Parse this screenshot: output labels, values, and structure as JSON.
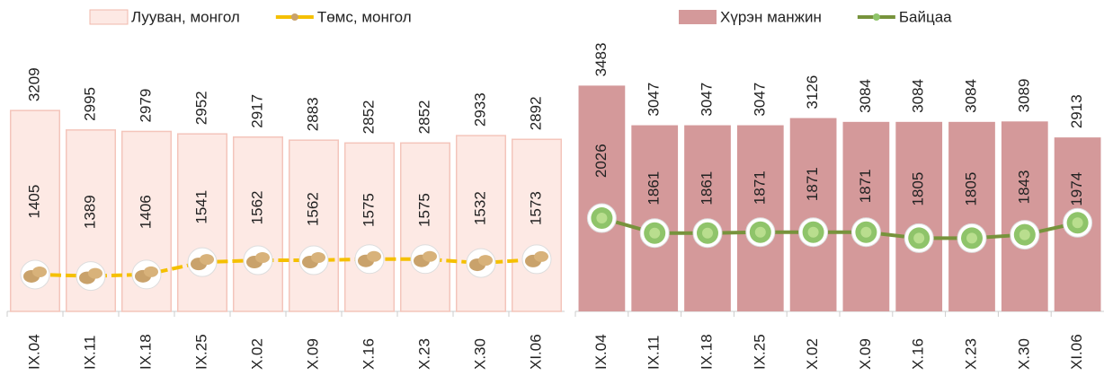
{
  "chart_data": [
    {
      "type": "bar",
      "legend": "top",
      "categories": [
        "IX.04",
        "IX.11",
        "IX.18",
        "IX.25",
        "X.02",
        "X.09",
        "X.16",
        "X.23",
        "X.30",
        "XI.06"
      ],
      "ylim": [
        1000,
        4000
      ],
      "series": [
        {
          "name": "Лууван, монгол",
          "type": "bar",
          "color": "#fde9e4",
          "values": [
            3209,
            2995,
            2979,
            2952,
            2917,
            2883,
            2852,
            2852,
            2933,
            2892
          ]
        },
        {
          "name": "Төмс, монгол",
          "type": "line",
          "color": "#f5c000",
          "values": [
            1405,
            1389,
            1406,
            1541,
            1562,
            1562,
            1575,
            1575,
            1532,
            1573
          ]
        }
      ]
    },
    {
      "type": "bar",
      "legend": "top",
      "categories": [
        "IX.04",
        "IX.11",
        "IX.18",
        "IX.25",
        "X.02",
        "X.09",
        "X.16",
        "X.23",
        "X.30",
        "XI.06"
      ],
      "ylim": [
        1000,
        4000
      ],
      "series": [
        {
          "name": "Хүрэн манжин",
          "type": "bar",
          "color": "#d4999a",
          "values": [
            3483,
            3047,
            3047,
            3047,
            3126,
            3084,
            3084,
            3084,
            3089,
            2913
          ]
        },
        {
          "name": "Байцаа",
          "type": "line",
          "color": "#77933c",
          "values": [
            2026,
            1861,
            1861,
            1871,
            1871,
            1871,
            1805,
            1805,
            1843,
            1974
          ]
        }
      ]
    }
  ]
}
